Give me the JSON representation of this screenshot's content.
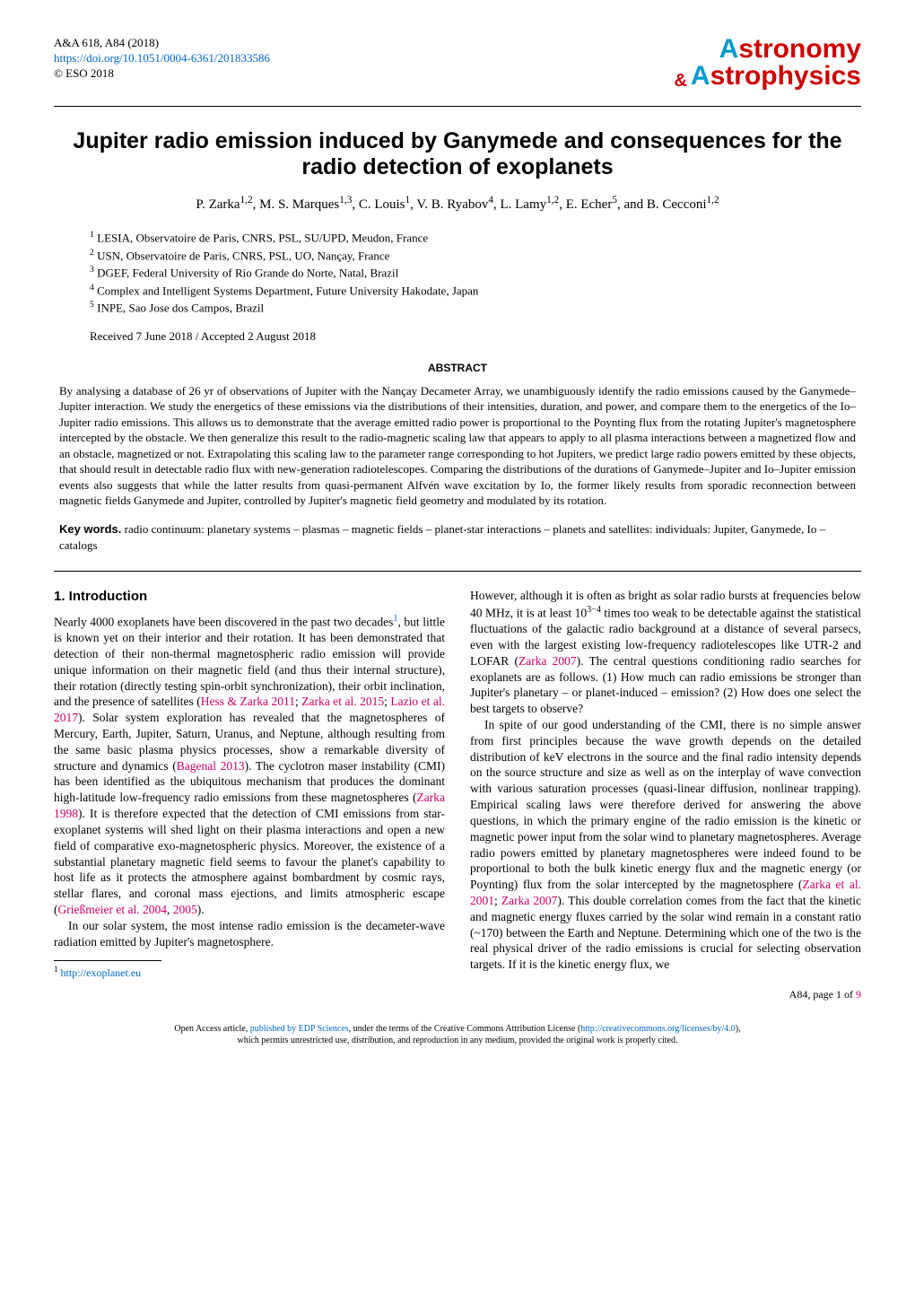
{
  "journal_ref": "A&A 618, A84 (2018)",
  "doi_url": "https://doi.org/10.1051/0004-6361/201833586",
  "copyright": "© ESO 2018",
  "logo": {
    "line1_cyan": "A",
    "line1_rest": "stronomy",
    "amp": "&",
    "line2_cyan": "A",
    "line2_rest": "strophysics"
  },
  "title": "Jupiter radio emission induced by Ganymede and consequences for the radio detection of exoplanets",
  "authors": "P. Zarka<sup>1,2</sup>, M. S. Marques<sup>1,3</sup>, C. Louis<sup>1</sup>, V. B. Ryabov<sup>4</sup>, L. Lamy<sup>1,2</sup>, E. Echer<sup>5</sup>, and B. Cecconi<sup>1,2</sup>",
  "affiliations": [
    "<sup>1</sup> LESIA, Observatoire de Paris, CNRS, PSL, SU/UPD, Meudon, France",
    "<sup>2</sup> USN, Observatoire de Paris, CNRS, PSL, UO, Nançay, France",
    "<sup>3</sup> DGEF, Federal University of Rio Grande do Norte, Natal, Brazil",
    "<sup>4</sup> Complex and Intelligent Systems Department, Future University Hakodate, Japan",
    "<sup>5</sup> INPE, Sao Jose dos Campos, Brazil"
  ],
  "dates": "Received 7 June 2018 / Accepted 2 August 2018",
  "abstract_head": "ABSTRACT",
  "abstract": "By analysing a database of 26 yr of observations of Jupiter with the Nançay Decameter Array, we unambiguously identify the radio emissions caused by the Ganymede–Jupiter interaction. We study the energetics of these emissions via the distributions of their intensities, duration, and power, and compare them to the energetics of the Io–Jupiter radio emissions. This allows us to demonstrate that the average emitted radio power is proportional to the Poynting flux from the rotating Jupiter's magnetosphere intercepted by the obstacle. We then generalize this result to the radio-magnetic scaling law that appears to apply to all plasma interactions between a magnetized flow and an obstacle, magnetized or not. Extrapolating this scaling law to the parameter range corresponding to hot Jupiters, we predict large radio powers emitted by these objects, that should result in detectable radio flux with new-generation radiotelescopes. Comparing the distributions of the durations of Ganymede–Jupiter and Io–Jupiter emission events also suggests that while the latter results from quasi-permanent Alfvén wave excitation by Io, the former likely results from sporadic reconnection between magnetic fields Ganymede and Jupiter, controlled by Jupiter's magnetic field geometry and modulated by its rotation.",
  "keywords_label": "Key words.",
  "keywords": " radio continuum: planetary systems – plasmas – magnetic fields – planet-star interactions – planets and satellites: individuals: Jupiter, Ganymede, Io – catalogs",
  "section1_head": "1. Introduction",
  "col1_p1": "Nearly 4000 exoplanets have been discovered in the past two decades<sup><a class=\"link\" href=\"#\">1</a></sup>, but little is known yet on their interior and their rotation. It has been demonstrated that detection of their non-thermal magnetospheric radio emission will provide unique information on their magnetic field (and thus their internal structure), their rotation (directly testing spin-orbit synchronization), their orbit inclination, and the presence of satellites (<a class=\"cite\" href=\"#\">Hess &amp; Zarka 2011</a>; <a class=\"cite\" href=\"#\">Zarka et al. 2015</a>; <a class=\"cite\" href=\"#\">Lazio et al. 2017</a>). Solar system exploration has revealed that the magnetospheres of Mercury, Earth, Jupiter, Saturn, Uranus, and Neptune, although resulting from the same basic plasma physics processes, show a remarkable diversity of structure and dynamics (<a class=\"cite\" href=\"#\">Bagenal 2013</a>). The cyclotron maser instability (CMI) has been identified as the ubiquitous mechanism that produces the dominant high-latitude low-frequency radio emissions from these magnetospheres (<a class=\"cite\" href=\"#\">Zarka 1998</a>). It is therefore expected that the detection of CMI emissions from star-exoplanet systems will shed light on their plasma interactions and open a new field of comparative exo-magnetospheric physics. Moreover, the existence of a substantial planetary magnetic field seems to favour the planet's capability to host life as it protects the atmosphere against bombardment by cosmic rays, stellar flares, and coronal mass ejections, and limits atmospheric escape (<a class=\"cite\" href=\"#\">Grießmeier et al. 2004</a>, <a class=\"cite\" href=\"#\">2005</a>).",
  "col1_p2": "In our solar system, the most intense radio emission is the decameter-wave radiation emitted by Jupiter's magnetosphere.",
  "footnote": "<sup>1</sup> <a class=\"link\" href=\"#\">http://exoplanet.eu</a>",
  "col2_p1": "However, although it is often as bright as solar radio bursts at frequencies below 40 MHz, it is at least 10<sup>3−4</sup> times too weak to be detectable against the statistical fluctuations of the galactic radio background at a distance of several parsecs, even with the largest existing low-frequency radiotelescopes like UTR-2 and LOFAR (<a class=\"cite\" href=\"#\">Zarka 2007</a>). The central questions conditioning radio searches for exoplanets are as follows. (1) How much can radio emissions be stronger than Jupiter's planetary – or planet-induced – emission? (2) How does one select the best targets to observe?",
  "col2_p2": "In spite of our good understanding of the CMI, there is no simple answer from first principles because the wave growth depends on the detailed distribution of keV electrons in the source and the final radio intensity depends on the source structure and size as well as on the interplay of wave convection with various saturation processes (quasi-linear diffusion, nonlinear trapping). Empirical scaling laws were therefore derived for answering the above questions, in which the primary engine of the radio emission is the kinetic or magnetic power input from the solar wind to planetary magnetospheres. Average radio powers emitted by planetary magnetospheres were indeed found to be proportional to both the bulk kinetic energy flux and the magnetic energy (or Poynting) flux from the solar intercepted by the magnetosphere (<a class=\"cite\" href=\"#\">Zarka et al. 2001</a>; <a class=\"cite\" href=\"#\">Zarka 2007</a>). This double correlation comes from the fact that the kinetic and magnetic energy fluxes carried by the solar wind remain in a constant ratio (~170) between the Earth and Neptune. Determining which one of the two is the real physical driver of the radio emissions is crucial for selecting observation targets. If it is the kinetic energy flux, we",
  "page_num": "A84, page 1 of ",
  "page_total": "9",
  "footer_line1": "Open Access article, <a class=\"link\" href=\"#\">published by EDP Sciences</a>, under the terms of the Creative Commons Attribution License (<a class=\"link\" href=\"#\">http://creativecommons.org/licenses/by/4.0</a>),",
  "footer_line2": "which permits unrestricted use, distribution, and reproduction in any medium, provided the original work is properly cited."
}
